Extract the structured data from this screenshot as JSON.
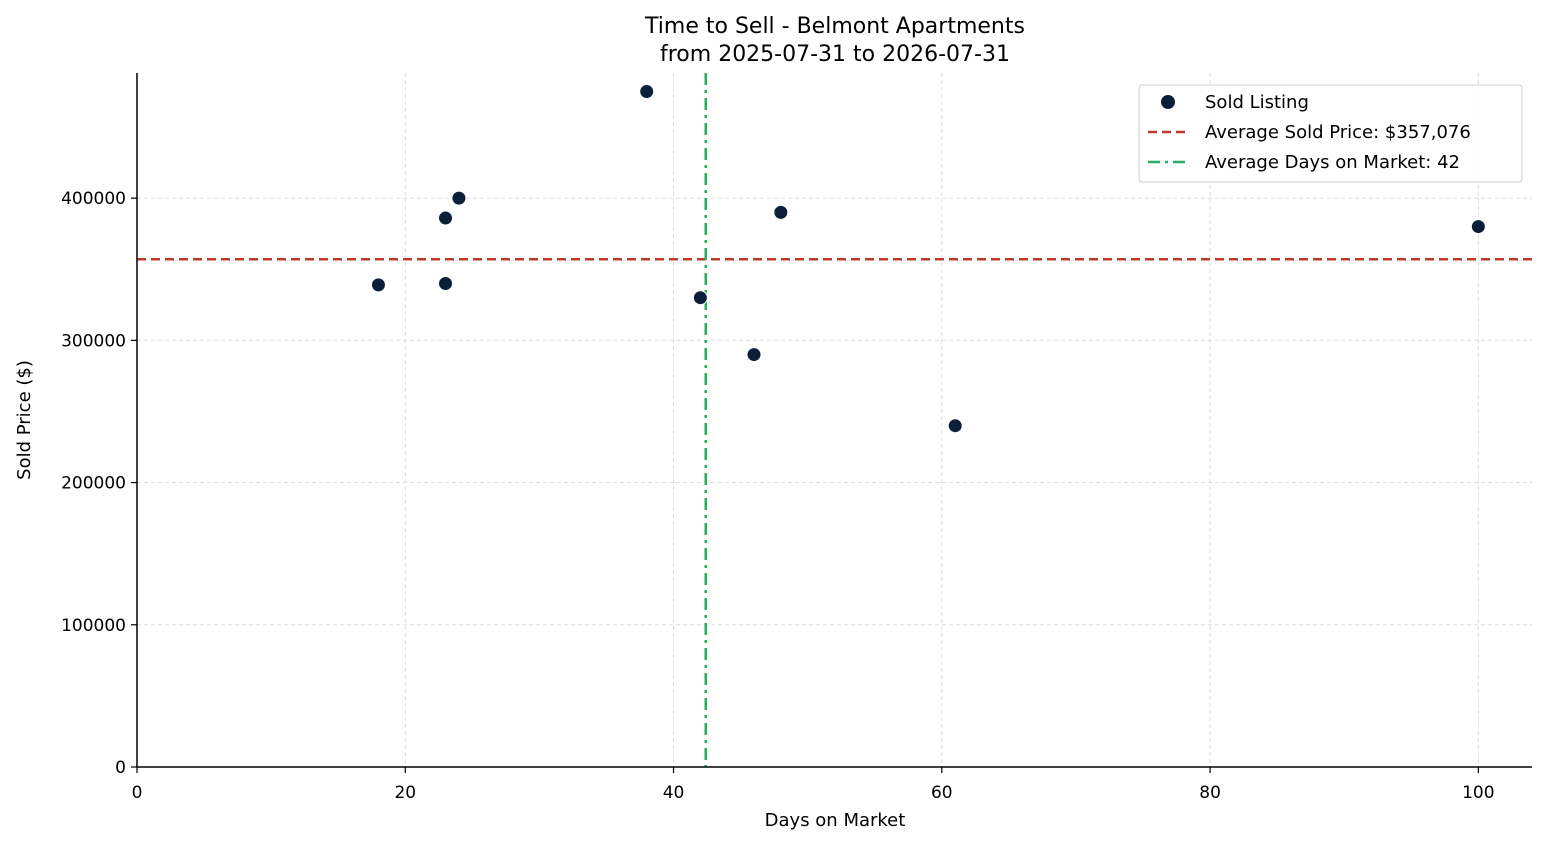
{
  "chart_data": {
    "type": "scatter",
    "title": "Time to Sell - Belmont Apartments",
    "subtitle": "from 2025-07-31 to 2026-07-31",
    "xlabel": "Days on Market",
    "ylabel": "Sold Price ($)",
    "xlim": [
      0,
      104
    ],
    "ylim": [
      0,
      488000
    ],
    "xticks": [
      0,
      20,
      40,
      60,
      80,
      100
    ],
    "yticks": [
      0,
      100000,
      200000,
      300000,
      400000
    ],
    "grid": true,
    "legend_position": "top-right",
    "series": [
      {
        "name": "Sold Listing",
        "color": "#0b1f3a",
        "points": [
          {
            "x": 18,
            "y": 339000
          },
          {
            "x": 23,
            "y": 340000
          },
          {
            "x": 23,
            "y": 386000
          },
          {
            "x": 24,
            "y": 400000
          },
          {
            "x": 38,
            "y": 475000
          },
          {
            "x": 42,
            "y": 330000
          },
          {
            "x": 46,
            "y": 290000
          },
          {
            "x": 48,
            "y": 390000
          },
          {
            "x": 61,
            "y": 240000
          },
          {
            "x": 100,
            "y": 380000
          }
        ]
      }
    ],
    "reference_lines": [
      {
        "orientation": "horizontal",
        "value": 357076,
        "label": "Average Sold Price: $357,076",
        "color": "#c0392b",
        "style": "dashed"
      },
      {
        "orientation": "vertical",
        "value": 42.4,
        "label": "Average Days on Market: 42",
        "color": "#27ae60",
        "style": "dashdot"
      }
    ]
  }
}
